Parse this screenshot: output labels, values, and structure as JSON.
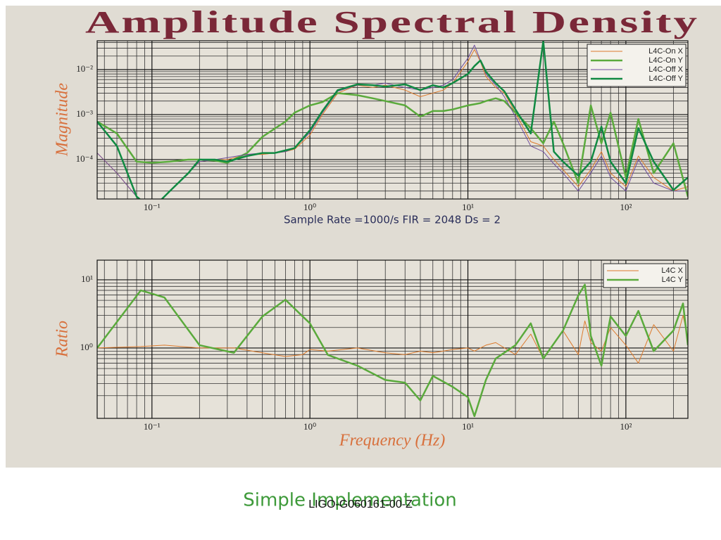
{
  "chart_data": [
    {
      "type": "line",
      "title": "Amplitude Spectral Density",
      "ylabel": "Magnitude",
      "xlabel": "Sample Rate =1000/s  FIR = 2048  Ds = 2",
      "xscale": "log",
      "yscale": "log",
      "grid": true,
      "minor_grid": true,
      "legend": "upper right",
      "xlim": [
        0.045,
        247
      ],
      "ylim": [
        1.33e-05,
        0.0437
      ],
      "xticks": [
        {
          "value": 0.1,
          "label": "10⁻¹"
        },
        {
          "value": 1,
          "label": "10⁰"
        },
        {
          "value": 10,
          "label": "10¹"
        },
        {
          "value": 100,
          "label": "10²"
        }
      ],
      "yticks": [
        {
          "value": 0.01,
          "label": "10⁻²"
        },
        {
          "value": 0.001,
          "label": "10⁻³"
        },
        {
          "value": 0.0001,
          "label": "10⁻⁴"
        }
      ],
      "x": [
        0.045,
        0.06,
        0.08,
        0.1,
        0.13,
        0.17,
        0.2,
        0.25,
        0.3,
        0.4,
        0.5,
        0.6,
        0.7,
        0.8,
        1,
        1.2,
        1.5,
        2,
        2.5,
        3,
        4,
        5,
        6,
        7,
        8,
        10,
        11,
        12,
        13,
        15,
        17,
        20,
        25,
        30,
        35,
        40,
        50,
        60,
        70,
        80,
        100,
        120,
        150,
        200,
        247
      ],
      "series": [
        {
          "name": "L4C-On X",
          "color": "#dc7a2c",
          "linewidth": 1,
          "values": [
            0.00014,
            5e-05,
            1.5e-05,
            8e-06,
            2e-05,
            5e-05,
            9e-05,
            0.0001,
            0.0001,
            0.00013,
            0.00013,
            0.00014,
            0.00015,
            0.00017,
            0.00035,
            0.001,
            0.003,
            0.0045,
            0.004,
            0.0045,
            0.0035,
            0.0025,
            0.003,
            0.0035,
            0.005,
            0.015,
            0.028,
            0.015,
            0.007,
            0.004,
            0.003,
            0.0011,
            0.00025,
            0.0002,
            0.0001,
            6e-05,
            2.5e-05,
            6e-05,
            0.00015,
            5e-05,
            2.5e-05,
            0.00012,
            4e-05,
            2e-05,
            2.5e-05
          ]
        },
        {
          "name": "L4C-On Y",
          "color": "#5aaa3c",
          "linewidth": 2.5,
          "values": [
            0.0007,
            0.00038,
            9e-05,
            8.5e-05,
            9e-05,
            0.0001,
            0.0001,
            9.5e-05,
            8.5e-05,
            0.00014,
            0.00032,
            0.00049,
            0.0007,
            0.0011,
            0.0016,
            0.0019,
            0.003,
            0.0027,
            0.0023,
            0.002,
            0.0016,
            0.0009,
            0.0012,
            0.0012,
            0.0013,
            0.0016,
            0.0017,
            0.0018,
            0.002,
            0.0023,
            0.002,
            0.0011,
            0.0005,
            0.00023,
            0.0007,
            0.00023,
            3e-05,
            0.0016,
            0.00023,
            0.0011,
            4e-05,
            0.0008,
            5e-05,
            0.00023,
            1.5e-05
          ]
        },
        {
          "name": "L4C-Off X",
          "color": "#6e4c9c",
          "linewidth": 1,
          "values": [
            0.00014,
            5e-05,
            1.5e-05,
            8e-06,
            2e-05,
            5e-05,
            9e-05,
            0.0001,
            0.00011,
            0.00013,
            0.00014,
            0.00014,
            0.00015,
            0.00018,
            0.0004,
            0.0011,
            0.0033,
            0.0045,
            0.0045,
            0.005,
            0.004,
            0.0035,
            0.004,
            0.0045,
            0.006,
            0.018,
            0.035,
            0.016,
            0.008,
            0.0045,
            0.0025,
            0.0009,
            0.0002,
            0.00015,
            8e-05,
            5e-05,
            2e-05,
            5e-05,
            0.00012,
            4e-05,
            2e-05,
            0.0001,
            3e-05,
            2e-05,
            2e-05
          ]
        },
        {
          "name": "L4C-Off Y",
          "color": "#108a42",
          "linewidth": 2.5,
          "values": [
            0.0007,
            0.0002,
            1.5e-05,
            8e-06,
            2e-05,
            5e-05,
            0.0001,
            0.0001,
            9e-05,
            0.00012,
            0.00014,
            0.00014,
            0.00016,
            0.00018,
            0.00045,
            0.0012,
            0.0035,
            0.0047,
            0.0045,
            0.0042,
            0.0047,
            0.0035,
            0.0045,
            0.004,
            0.005,
            0.008,
            0.012,
            0.016,
            0.009,
            0.005,
            0.0033,
            0.0013,
            0.00038,
            0.043,
            0.00015,
            9e-05,
            4.4e-05,
            9e-05,
            0.00054,
            9e-05,
            3e-05,
            0.0005,
            9e-05,
            2.1e-05,
            4e-05
          ]
        }
      ]
    },
    {
      "type": "line",
      "ylabel": "Ratio",
      "xlabel": "Frequency (Hz)",
      "xscale": "log",
      "yscale": "log",
      "grid": true,
      "minor_grid": true,
      "legend": "upper right",
      "xlim": [
        0.045,
        247
      ],
      "ylim": [
        0.093,
        19.4
      ],
      "xticks": [
        {
          "value": 0.1,
          "label": "10⁻¹"
        },
        {
          "value": 1,
          "label": "10⁰"
        },
        {
          "value": 10,
          "label": "10¹"
        },
        {
          "value": 100,
          "label": "10²"
        }
      ],
      "yticks": [
        {
          "value": 10,
          "label": "10¹"
        },
        {
          "value": 1,
          "label": "10⁰"
        }
      ],
      "x": [
        0.045,
        0.085,
        0.12,
        0.2,
        0.33,
        0.5,
        0.7,
        0.9,
        1,
        1.3,
        2,
        3,
        4,
        5,
        6,
        8,
        10,
        11,
        13,
        15,
        20,
        25,
        30,
        40,
        50,
        55,
        60,
        70,
        80,
        100,
        120,
        150,
        200,
        230,
        247
      ],
      "series": [
        {
          "name": "L4C X",
          "color": "#dc7a2c",
          "linewidth": 1,
          "values": [
            1.0,
            1.05,
            1.1,
            1.0,
            1.0,
            0.85,
            0.75,
            0.8,
            0.95,
            0.9,
            1.0,
            0.85,
            0.8,
            0.9,
            0.85,
            0.95,
            1.0,
            0.9,
            1.1,
            1.2,
            0.8,
            1.6,
            0.7,
            1.8,
            0.8,
            2.5,
            1.2,
            0.9,
            2.0,
            1.1,
            0.6,
            2.2,
            0.9,
            3.0,
            1.4
          ]
        },
        {
          "name": "L4C Y",
          "color": "#5aaa3c",
          "linewidth": 2.5,
          "values": [
            1.0,
            7.0,
            5.5,
            1.1,
            0.85,
            2.9,
            5.1,
            2.9,
            2.3,
            0.79,
            0.55,
            0.34,
            0.31,
            0.17,
            0.39,
            0.27,
            0.19,
            0.1,
            0.34,
            0.7,
            1.1,
            2.3,
            0.7,
            1.8,
            5.9,
            8.5,
            1.5,
            0.55,
            2.9,
            1.5,
            3.5,
            0.9,
            1.8,
            4.5,
            1.1
          ]
        }
      ]
    }
  ],
  "footer": {
    "caption": "Simple Implementation",
    "doc_id": "LIGO-G060161-00-Z"
  }
}
